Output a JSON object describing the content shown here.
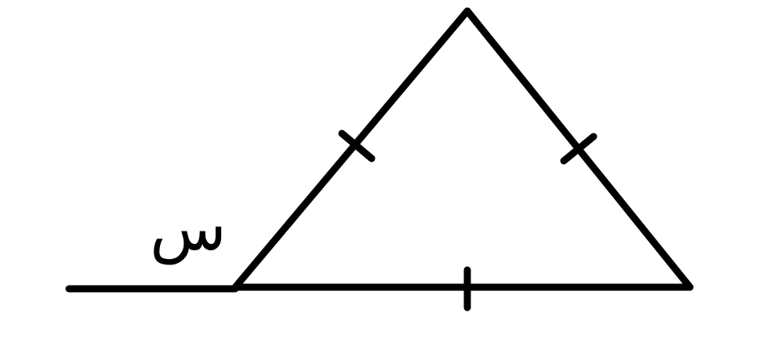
{
  "label": "س"
}
